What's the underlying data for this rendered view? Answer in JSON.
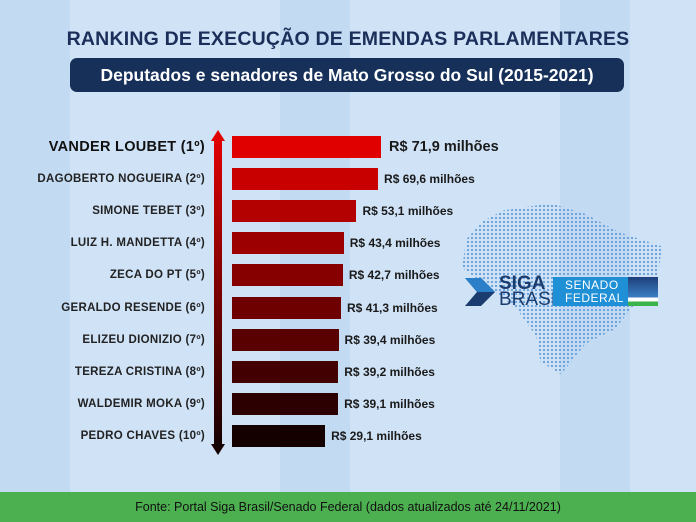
{
  "title": "RANKING DE EXECUÇÃO DE EMENDAS PARLAMENTARES",
  "subtitle": "Deputados e senadores de Mato Grosso do Sul (2015-2021)",
  "logos": {
    "siga_line1": "SIGA",
    "siga_line2": "BRASIL",
    "senado_line1": "SENADO",
    "senado_line2": "FEDERAL"
  },
  "footer": "Fonte: Portal Siga Brasil/Senado Federal (dados atualizados até 24/11/2021)",
  "colors": {
    "top_bar": "#e00000",
    "bottom_bar": "#150000",
    "background": "#cfe2f6",
    "title": "#1b2f5a",
    "footer": "#4caf50"
  },
  "chart_data": {
    "type": "bar",
    "orientation": "horizontal",
    "title": "RANKING DE EXECUÇÃO DE EMENDAS PARLAMENTARES",
    "subtitle": "Deputados e senadores de Mato Grosso do Sul (2015-2021)",
    "unit": "R$ milhões",
    "categories": [
      "VANDER LOUBET (1º)",
      "DAGOBERTO NOGUEIRA (2º)",
      "SIMONE TEBET (3º)",
      "LUIZ H. MANDETTA (4º)",
      "ZECA DO PT (5º)",
      "GERALDO RESENDE (6º)",
      "ELIZEU DIONIZIO (7º)",
      "TEREZA CRISTINA (8º)",
      "WALDEMIR MOKA (9º)",
      "PEDRO CHAVES (10º)"
    ],
    "values": [
      71.9,
      69.6,
      53.1,
      43.4,
      42.7,
      41.3,
      39.4,
      39.2,
      39.1,
      29.1
    ],
    "labels": [
      "R$ 71,9 milhões",
      "R$ 69,6 milhões",
      "R$ 53,1 milhões",
      "R$ 43,4 milhões",
      "R$ 42,7 milhões",
      "R$ 41,3 milhões",
      "R$ 39,4 milhões",
      "R$ 39,2 milhões",
      "R$ 39,1 milhões",
      "R$ 29,1 milhões"
    ],
    "grid": false,
    "legend": "none"
  }
}
